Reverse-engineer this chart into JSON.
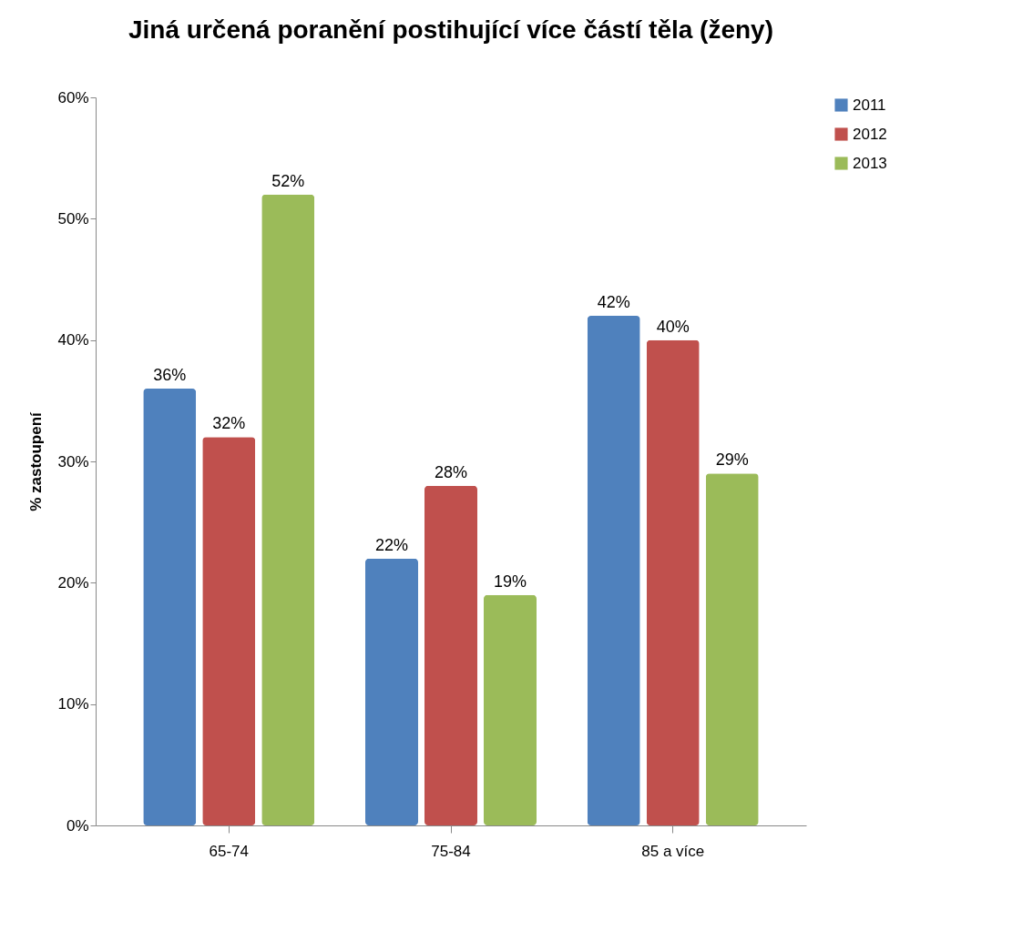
{
  "chart_data": {
    "type": "bar",
    "title": "Jiná určená poranění postihující více částí těla (ženy)",
    "ylabel": "% zastoupení",
    "categories": [
      "65-74",
      "75-84",
      "85 a více"
    ],
    "series": [
      {
        "name": "2011",
        "color": "#4f81bd",
        "values": [
          36,
          22,
          42
        ],
        "value_labels": [
          "36%",
          "22%",
          "42%"
        ]
      },
      {
        "name": "2012",
        "color": "#c0504d",
        "values": [
          32,
          28,
          40
        ],
        "value_labels": [
          "32%",
          "28%",
          "40%"
        ]
      },
      {
        "name": "2013",
        "color": "#9bbb59",
        "values": [
          52,
          19,
          29
        ],
        "value_labels": [
          "52%",
          "19%",
          "29%"
        ]
      }
    ],
    "ylim": [
      0,
      60
    ],
    "yticks": [
      {
        "value": 0,
        "label": "0%"
      },
      {
        "value": 10,
        "label": "10%"
      },
      {
        "value": 20,
        "label": "20%"
      },
      {
        "value": 30,
        "label": "30%"
      },
      {
        "value": 40,
        "label": "40%"
      },
      {
        "value": 50,
        "label": "50%"
      },
      {
        "value": 60,
        "label": "60%"
      }
    ],
    "grid": false,
    "legend": "right"
  }
}
